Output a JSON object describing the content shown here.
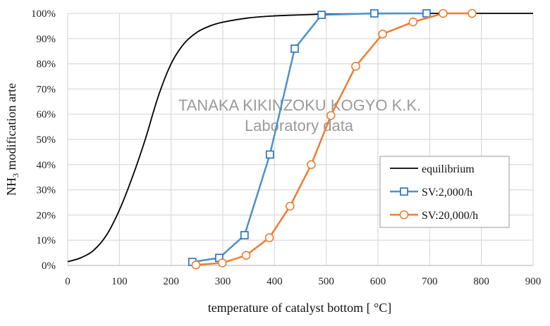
{
  "chart_data": {
    "type": "line",
    "title": "",
    "xlabel": "temperature of catalyst bottom [ °C]",
    "ylabel_main": "NH",
    "ylabel_sub": "3",
    "ylabel_rest": " modification arte",
    "xlim": [
      0,
      900
    ],
    "ylim": [
      0,
      100
    ],
    "x_ticks": [
      "0",
      "100",
      "200",
      "300",
      "400",
      "500",
      "600",
      "700",
      "800",
      "900"
    ],
    "y_ticks": [
      "0%",
      "10%",
      "20%",
      "30%",
      "40%",
      "50%",
      "60%",
      "70%",
      "80%",
      "90%",
      "100%"
    ],
    "grid": true,
    "legend_position": "right",
    "watermark": [
      "TANAKA KIKINZOKU KOGYO K.K.",
      "Laboratory data"
    ],
    "series": [
      {
        "name": "equilibrium",
        "color": "#000000",
        "marker": "none",
        "x": [
          0,
          25,
          50,
          75,
          100,
          125,
          150,
          175,
          200,
          225,
          250,
          275,
          300,
          350,
          400,
          450,
          500,
          600,
          700,
          800,
          900
        ],
        "y": [
          1.5,
          3,
          6,
          12,
          22,
          35,
          50,
          67,
          80,
          88,
          92.5,
          95,
          96.5,
          98.2,
          99,
          99.4,
          99.7,
          99.9,
          100,
          100,
          100
        ]
      },
      {
        "name": "SV:2,000/h",
        "color": "#4f8fcc",
        "marker": "square",
        "x": [
          241,
          293,
          342,
          391,
          439,
          491,
          593,
          694
        ],
        "y": [
          1.4,
          3,
          12,
          44,
          86,
          99.4,
          100,
          100
        ]
      },
      {
        "name": "SV:20,000/h",
        "color": "#ed7d31",
        "marker": "circle",
        "x": [
          248,
          299,
          345,
          390,
          430,
          471,
          509,
          557,
          609,
          668,
          726,
          782
        ],
        "y": [
          0.2,
          1,
          4,
          11,
          23.5,
          40,
          59.5,
          79,
          91.8,
          96.6,
          100,
          100
        ]
      }
    ]
  }
}
